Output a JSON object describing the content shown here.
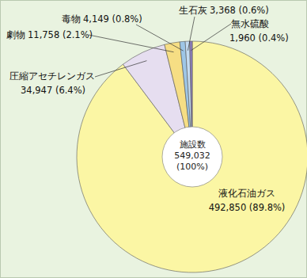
{
  "chart_data": {
    "type": "pie",
    "categories": [
      "液化石油ガス",
      "圧縮アセチレンガス",
      "劇物",
      "毒物",
      "生石灰",
      "無水硫酸"
    ],
    "values": [
      492850,
      34947,
      11758,
      4149,
      3368,
      1960
    ],
    "value_labels": [
      "492,850 (89.8%)",
      "34,947 (6.4%)",
      "11,758 (2.1%)",
      "4,149 (0.8%)",
      "3,368 (0.6%)",
      "1,960 (0.4%)"
    ],
    "colors": [
      "#fbf6a4",
      "#e6def0",
      "#f6de84",
      "#9ec6e6",
      "#c4dcf2",
      "#8e7fc0"
    ],
    "data_labels": true,
    "annotations": [
      "施設数",
      "549,032",
      "(100%)"
    ]
  }
}
